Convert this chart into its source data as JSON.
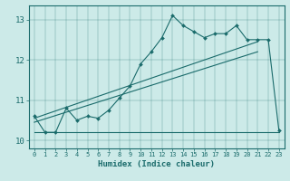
{
  "xlabel": "Humidex (Indice chaleur)",
  "bg_color": "#cceae8",
  "line_color": "#1a6b6b",
  "xlim": [
    -0.5,
    23.5
  ],
  "ylim": [
    9.8,
    13.35
  ],
  "yticks": [
    10,
    11,
    12,
    13
  ],
  "xticks": [
    0,
    1,
    2,
    3,
    4,
    5,
    6,
    7,
    8,
    9,
    10,
    11,
    12,
    13,
    14,
    15,
    16,
    17,
    18,
    19,
    20,
    21,
    22,
    23
  ],
  "curve_x": [
    0,
    1,
    2,
    3,
    4,
    5,
    6,
    7,
    8,
    9,
    10,
    11,
    12,
    13,
    14,
    15,
    16,
    17,
    18,
    19,
    20,
    21,
    22,
    23
  ],
  "curve_y": [
    10.6,
    10.2,
    10.2,
    10.8,
    10.5,
    10.6,
    10.55,
    10.75,
    11.05,
    11.35,
    11.9,
    12.2,
    12.55,
    13.1,
    12.85,
    12.7,
    12.55,
    12.65,
    12.65,
    12.85,
    12.5,
    12.5,
    12.5,
    10.25
  ],
  "line1_x": [
    0,
    23
  ],
  "line1_y": [
    10.2,
    10.2
  ],
  "line2_x": [
    0,
    21
  ],
  "line2_y": [
    10.55,
    12.45
  ],
  "line3_x": [
    0,
    21
  ],
  "line3_y": [
    10.45,
    12.2
  ]
}
